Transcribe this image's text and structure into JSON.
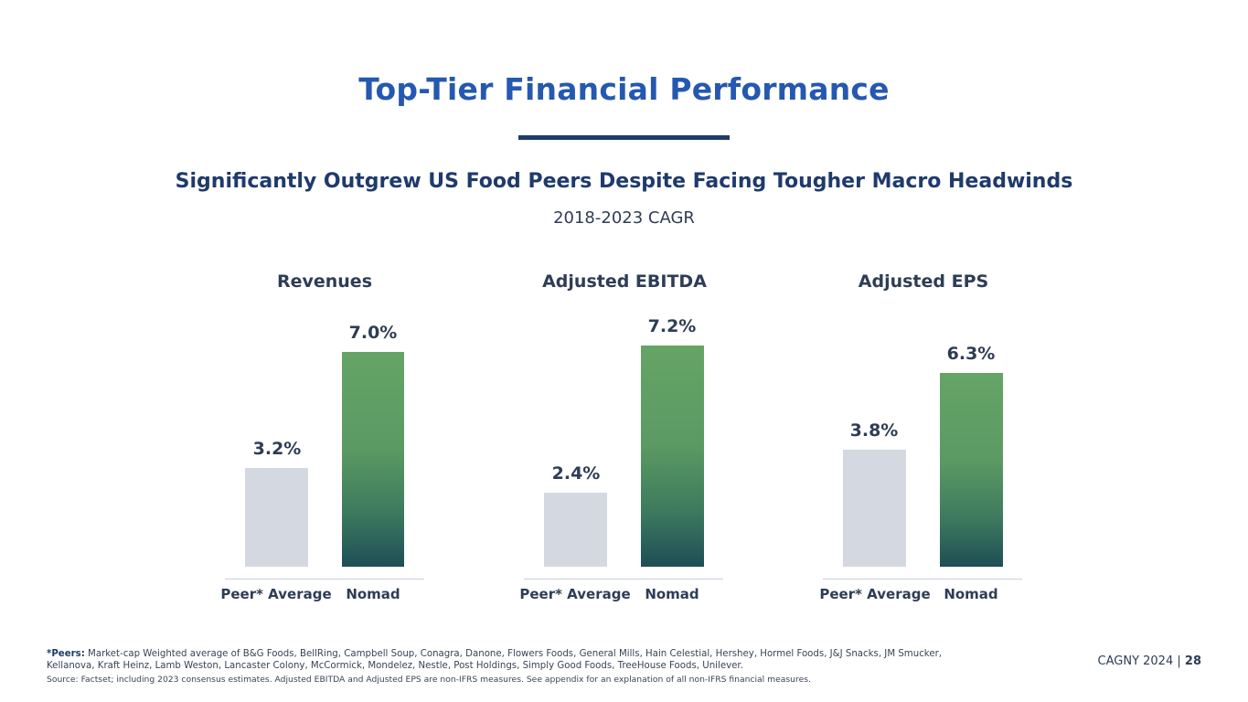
{
  "slide": {
    "title": "Top-Tier Financial Performance",
    "subtitle": "Significantly Outgrew US Food Peers Despite Facing Tougher Macro Headwinds",
    "period": "2018-2023 CAGR"
  },
  "chart_data": [
    {
      "type": "bar",
      "title": "Revenues",
      "categories": [
        "Peer* Average",
        "Nomad"
      ],
      "values": [
        3.2,
        7.0
      ],
      "labels": [
        "3.2%",
        "7.0%"
      ],
      "unit": "%",
      "ylim": [
        0,
        8
      ]
    },
    {
      "type": "bar",
      "title": "Adjusted EBITDA",
      "categories": [
        "Peer* Average",
        "Nomad"
      ],
      "values": [
        2.4,
        7.2
      ],
      "labels": [
        "2.4%",
        "7.2%"
      ],
      "unit": "%",
      "ylim": [
        0,
        8
      ]
    },
    {
      "type": "bar",
      "title": "Adjusted EPS",
      "categories": [
        "Peer* Average",
        "Nomad"
      ],
      "values": [
        3.8,
        6.3
      ],
      "labels": [
        "3.8%",
        "6.3%"
      ],
      "unit": "%",
      "ylim": [
        0,
        8
      ]
    }
  ],
  "colors": {
    "title": "#2558b0",
    "text": "#2e3d55",
    "peer_bar": "#d3d8e1",
    "nomad_bar_top": "#65a465",
    "nomad_bar_bottom": "#1e4e56"
  },
  "footnote": {
    "label": "*Peers:",
    "text": "Market-cap Weighted average of B&G Foods, BellRing, Campbell Soup, Conagra, Danone, Flowers Foods, General Mills, Hain Celestial, Hershey, Hormel Foods, J&J Snacks, JM Smucker, Kellanova, Kraft Heinz, Lamb Weston, Lancaster Colony, McCormick, Mondelez, Nestle, Post Holdings, Simply Good Foods, TreeHouse Foods, Unilever.",
    "source": "Source: Factset; including 2023 consensus estimates. Adjusted EBITDA and Adjusted EPS are non-IFRS measures. See appendix for an explanation of all non-IFRS financial measures."
  },
  "footer": {
    "event": "CAGNY 2024",
    "separator": "|",
    "page": "28"
  }
}
